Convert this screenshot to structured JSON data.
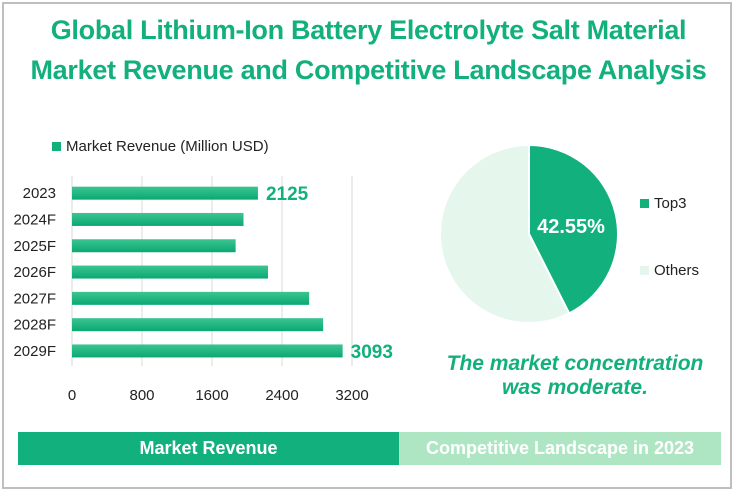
{
  "title": {
    "line1": "Global Lithium-Ion Battery Electrolyte Salt Material",
    "line2": "Market Revenue and Competitive Landscape Analysis"
  },
  "colors": {
    "accent": "#12b07c",
    "light_accent": "#aee6c4",
    "others_slice": "#e5f7ec",
    "gridline": "#d9d9d9"
  },
  "chart_data": [
    {
      "type": "bar",
      "orientation": "horizontal",
      "title": "",
      "legend": "Market Revenue (Million USD)",
      "legend_position": "top",
      "categories": [
        "2023",
        "2024F",
        "2025F",
        "2026F",
        "2027F",
        "2028F",
        "2029F"
      ],
      "series": [
        {
          "name": "Market Revenue (Million USD)",
          "values": [
            2125,
            1960,
            1870,
            2240,
            2710,
            2870,
            3093
          ]
        }
      ],
      "data_labels": {
        "2023": "2125",
        "2029F": "3093"
      },
      "xlabel": "",
      "ylabel": "",
      "xlim": [
        0,
        3200
      ],
      "xticks": [
        "0",
        "800",
        "1600",
        "2400",
        "3200"
      ],
      "grid": true
    },
    {
      "type": "pie",
      "title": "",
      "slices": [
        {
          "label": "Top3",
          "value": 42.55
        },
        {
          "label": "Others",
          "value": 57.45
        }
      ],
      "data_label": "42.55%",
      "legend": [
        "Top3",
        "Others"
      ],
      "legend_position": "right"
    }
  ],
  "conclusion": {
    "line1": "The market concentration",
    "line2": "was moderate."
  },
  "tabs": {
    "left": "Market Revenue",
    "right": "Competitive Landscape in 2023"
  }
}
